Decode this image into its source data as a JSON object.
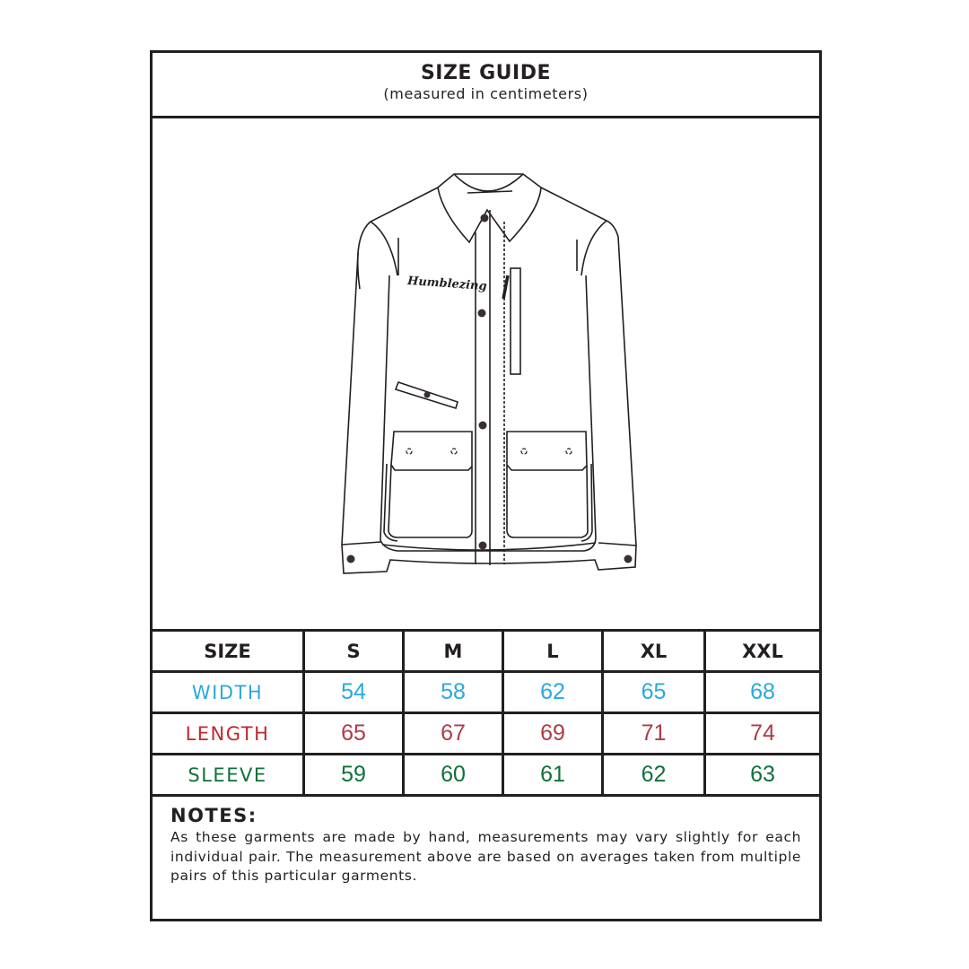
{
  "header": {
    "title": "SIZE GUIDE",
    "subtitle": "(measured in centimeters)"
  },
  "illustration": {
    "logo_text": "Humblezing"
  },
  "colors": {
    "width": "#29a9dc",
    "length": "#c1272d",
    "length_values": "#b03a44",
    "sleeve": "#10703a",
    "border": "#231f20"
  },
  "table": {
    "columns": [
      "SIZE",
      "S",
      "M",
      "L",
      "XL",
      "XXL"
    ],
    "rows": [
      {
        "label": "WIDTH",
        "values": [
          "54",
          "58",
          "62",
          "65",
          "68"
        ]
      },
      {
        "label": "LENGTH",
        "values": [
          "65",
          "67",
          "69",
          "71",
          "74"
        ]
      },
      {
        "label": "SLEEVE",
        "values": [
          "59",
          "60",
          "61",
          "62",
          "63"
        ]
      }
    ]
  },
  "notes": {
    "heading": "NOTES:",
    "text": "As these garments are made by hand, measurements may vary slightly for each individual pair. The measurement above are based on averages taken from multiple pairs of this particular garments."
  }
}
